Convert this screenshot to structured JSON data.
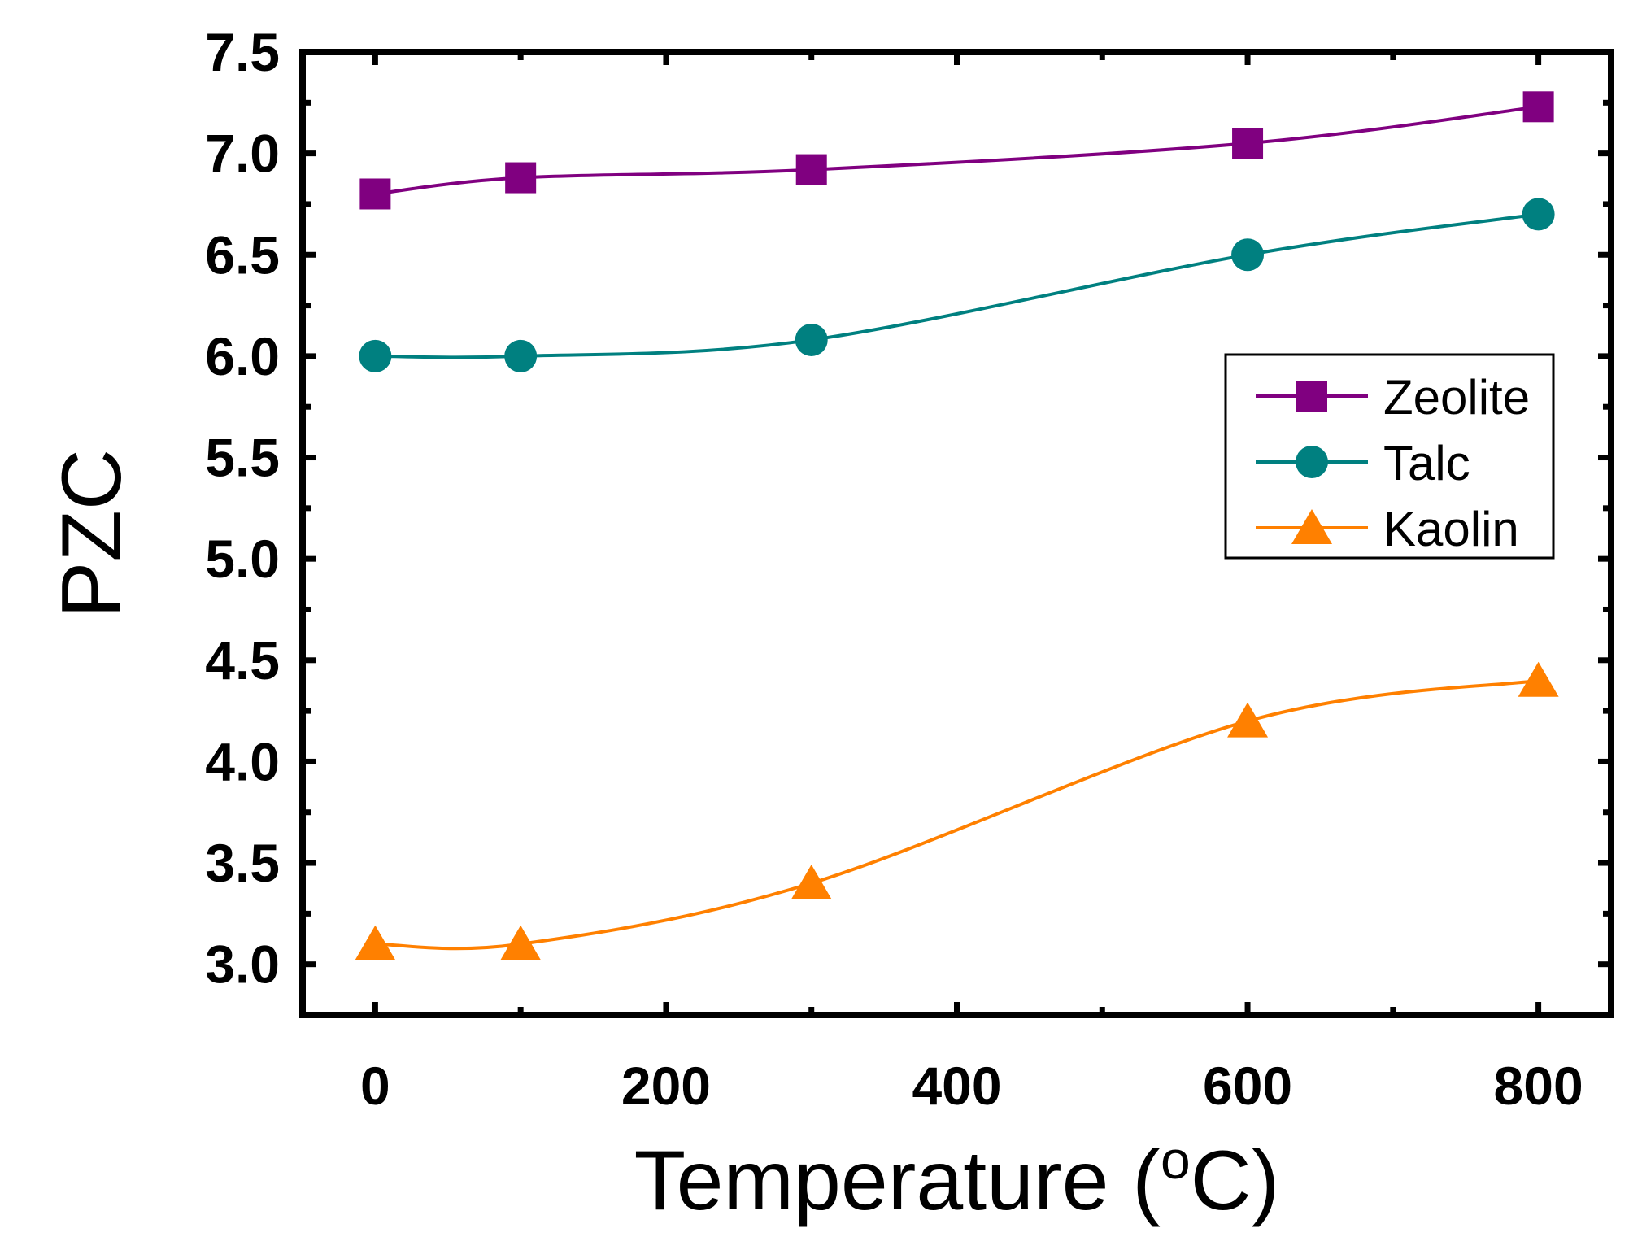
{
  "chart_data": {
    "type": "line",
    "title": "",
    "xlabel": "Temperature (",
    "xlabel_sup": "o",
    "xlabel_suffix": "C)",
    "ylabel": "PZC",
    "xlim": [
      -50,
      850
    ],
    "ylim": [
      2.75,
      7.5
    ],
    "x_ticks": [
      0,
      200,
      400,
      600,
      800
    ],
    "x_tick_labels": [
      "0",
      "200",
      "400",
      "600",
      "800"
    ],
    "y_ticks": [
      3.0,
      3.5,
      4.0,
      4.5,
      5.0,
      5.5,
      6.0,
      6.5,
      7.0,
      7.5
    ],
    "y_tick_labels": [
      "3.0",
      "3.5",
      "4.0",
      "4.5",
      "5.0",
      "5.5",
      "6.0",
      "6.5",
      "7.0",
      "7.5"
    ],
    "grid": false,
    "legend_position": "right",
    "series": [
      {
        "name": "Zeolite",
        "color": "#800080",
        "marker": "square",
        "x": [
          0,
          100,
          300,
          600,
          800
        ],
        "y": [
          6.8,
          6.88,
          6.92,
          7.05,
          7.23
        ]
      },
      {
        "name": "Talc",
        "color": "#008080",
        "marker": "circle",
        "x": [
          0,
          100,
          300,
          600,
          800
        ],
        "y": [
          6.0,
          6.0,
          6.08,
          6.5,
          6.7
        ]
      },
      {
        "name": "Kaolin",
        "color": "#FF8000",
        "marker": "triangle",
        "x": [
          0,
          100,
          300,
          600,
          800
        ],
        "y": [
          3.1,
          3.1,
          3.4,
          4.2,
          4.4
        ]
      }
    ]
  }
}
